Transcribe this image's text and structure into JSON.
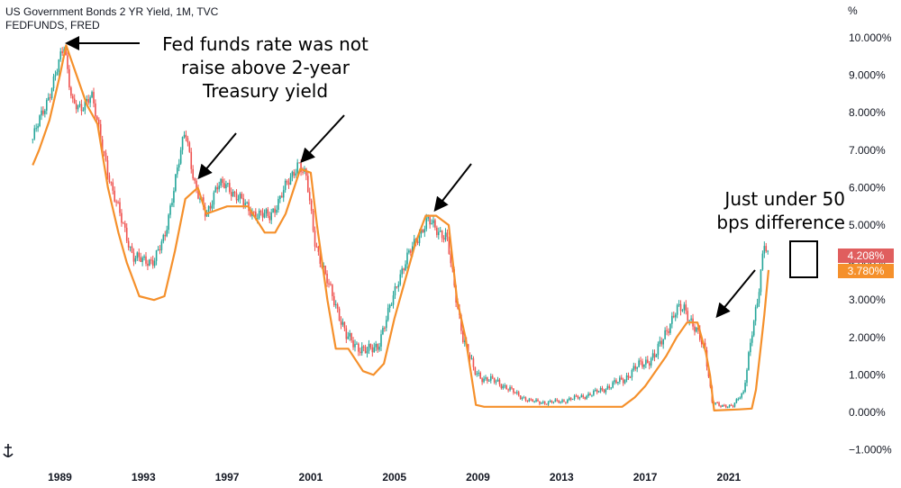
{
  "legend": {
    "line1": "US Government Bonds 2 YR Yield, 1M, TVC",
    "line2": "FEDFUNDS, FRED"
  },
  "axis": {
    "unit_label": "%",
    "y_ticks": [
      "10.000%",
      "9.000%",
      "8.000%",
      "7.000%",
      "6.000%",
      "5.000%",
      "4.000%",
      "3.000%",
      "2.000%",
      "1.000%",
      "0.000%",
      "−1.000%"
    ],
    "y_tick_values": [
      10,
      9,
      8,
      7,
      6,
      5,
      4,
      3,
      2,
      1,
      0,
      -1
    ],
    "x_ticks": [
      "1989",
      "1993",
      "1997",
      "2001",
      "2005",
      "2009",
      "2013",
      "2017",
      "2021"
    ],
    "x_tick_values": [
      1989,
      1993,
      1997,
      2001,
      2005,
      2009,
      2013,
      2017,
      2021
    ]
  },
  "annotations": {
    "text1": "Fed funds rate was not raise above 2-year Treasury yield",
    "text2": "Just under 50 bps difference"
  },
  "price_tags": {
    "y2": "4.208%",
    "fedfunds": "3.780%"
  },
  "colors": {
    "up": "#26a69a",
    "down": "#ef5350",
    "fedfunds": "#f5902b",
    "axis_text": "#131722"
  },
  "icons": {
    "corner": "anchor-icon"
  },
  "chart_data": {
    "type": "line",
    "title": "US Government Bonds 2 YR Yield, 1M, TVC",
    "ylim": [
      -1,
      10
    ],
    "xlim": [
      1987.6,
      2024.5
    ],
    "series": [
      {
        "name": "US Government Bonds 2 YR Yield, 1M, TVC",
        "x": [
          1987.7,
          1988.3,
          1988.8,
          1989.2,
          1989.6,
          1990.0,
          1990.5,
          1991.0,
          1991.5,
          1992.0,
          1992.5,
          1993.0,
          1993.5,
          1994.0,
          1994.5,
          1995.0,
          1995.5,
          1996.0,
          1996.5,
          1997.0,
          1997.5,
          1998.0,
          1998.5,
          1999.0,
          1999.5,
          2000.0,
          2000.4,
          2000.8,
          2001.2,
          2001.7,
          2002.2,
          2002.7,
          2003.2,
          2003.7,
          2004.2,
          2004.7,
          2005.2,
          2005.7,
          2006.2,
          2006.6,
          2007.0,
          2007.5,
          2007.9,
          2008.3,
          2008.8,
          2009.3,
          2010.0,
          2010.8,
          2011.5,
          2012.3,
          2013.0,
          2013.8,
          2014.5,
          2015.3,
          2016.0,
          2016.8,
          2017.5,
          2018.0,
          2018.5,
          2018.9,
          2019.4,
          2019.9,
          2020.2,
          2020.6,
          2021.2,
          2021.7,
          2022.1,
          2022.4,
          2022.7,
          2022.9
        ],
        "values": [
          7.3,
          8.2,
          9.0,
          9.8,
          8.3,
          8.0,
          8.6,
          7.1,
          6.0,
          5.0,
          4.2,
          4.0,
          4.1,
          4.6,
          6.2,
          7.5,
          6.0,
          5.2,
          6.1,
          6.0,
          5.8,
          5.4,
          5.3,
          5.2,
          5.7,
          6.2,
          6.7,
          6.2,
          4.6,
          3.6,
          2.9,
          2.0,
          1.8,
          1.6,
          1.8,
          2.6,
          3.6,
          4.2,
          4.8,
          5.1,
          4.9,
          4.7,
          3.2,
          2.0,
          1.1,
          0.9,
          0.8,
          0.5,
          0.3,
          0.26,
          0.3,
          0.4,
          0.5,
          0.7,
          0.9,
          1.3,
          1.5,
          2.2,
          2.7,
          2.8,
          2.2,
          1.6,
          0.3,
          0.15,
          0.2,
          0.5,
          2.2,
          3.0,
          4.5,
          4.2
        ]
      },
      {
        "name": "FEDFUNDS, FRED",
        "x": [
          1987.7,
          1988.0,
          1988.5,
          1989.0,
          1989.3,
          1989.8,
          1990.3,
          1990.8,
          1991.3,
          1991.8,
          1992.2,
          1992.8,
          1993.5,
          1994.0,
          1994.5,
          1995.0,
          1995.6,
          1996.0,
          1997.0,
          1997.5,
          1998.0,
          1998.8,
          1999.3,
          1999.8,
          2000.5,
          2001.0,
          2001.3,
          2001.8,
          2002.2,
          2002.8,
          2003.5,
          2004.0,
          2004.5,
          2005.0,
          2005.5,
          2006.0,
          2006.5,
          2007.0,
          2007.6,
          2008.0,
          2008.4,
          2008.9,
          2009.3,
          2012.0,
          2015.9,
          2016.5,
          2017.0,
          2017.5,
          2018.0,
          2018.5,
          2019.0,
          2019.5,
          2019.9,
          2020.1,
          2020.3,
          2021.5,
          2022.1,
          2022.3,
          2022.5,
          2022.7,
          2022.9
        ],
        "values": [
          6.6,
          7.0,
          7.8,
          9.0,
          9.8,
          9.0,
          8.2,
          7.7,
          6.0,
          4.8,
          4.0,
          3.1,
          3.0,
          3.1,
          4.3,
          5.7,
          6.0,
          5.3,
          5.5,
          5.5,
          5.5,
          4.8,
          4.8,
          5.3,
          6.5,
          6.4,
          5.0,
          3.0,
          1.7,
          1.7,
          1.1,
          1.0,
          1.3,
          2.5,
          3.5,
          4.5,
          5.25,
          5.25,
          5.0,
          3.0,
          2.0,
          0.2,
          0.15,
          0.15,
          0.15,
          0.4,
          0.7,
          1.1,
          1.5,
          2.0,
          2.4,
          2.4,
          1.6,
          1.0,
          0.05,
          0.08,
          0.1,
          0.6,
          1.6,
          2.6,
          3.8
        ]
      }
    ],
    "last_values": {
      "y2": 4.208,
      "fedfunds": 3.78
    }
  }
}
